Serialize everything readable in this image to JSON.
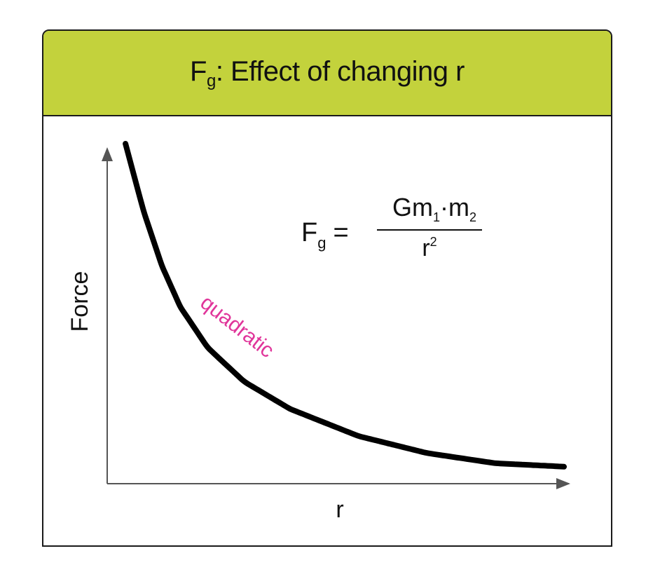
{
  "title": {
    "main": "F",
    "sub": "g",
    "rest": ": Effect of changing  r"
  },
  "formula": {
    "lhs_main": "F",
    "lhs_sub": "g",
    "equals": "=",
    "num_a": "Gm",
    "num_sub1": "1",
    "num_dot": "·m",
    "num_sub2": "2",
    "den_main": "r",
    "den_sup": "2"
  },
  "chart_data": {
    "type": "line",
    "xlabel": "r",
    "ylabel": "Force",
    "annotation": "quadratic",
    "series": [
      {
        "values_description_free": true,
        "x": [
          0.04,
          0.08,
          0.12,
          0.16,
          0.22,
          0.3,
          0.4,
          0.55,
          0.7,
          0.85,
          1.0
        ],
        "y": [
          1.0,
          0.8,
          0.64,
          0.52,
          0.4,
          0.3,
          0.22,
          0.14,
          0.09,
          0.06,
          0.05
        ]
      }
    ]
  },
  "colors": {
    "header_bg": "#c3d23c",
    "curve": "#000000",
    "annotation": "#e0359a",
    "axis": "#555555"
  }
}
